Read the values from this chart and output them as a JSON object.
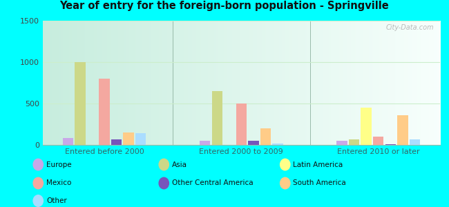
{
  "title": "Year of entry for the foreign-born population - Springville",
  "groups": [
    "Entered before 2000",
    "Entered 2000 to 2009",
    "Entered 2010 or later"
  ],
  "categories": [
    "Europe",
    "Asia",
    "Latin America",
    "Mexico",
    "Other Central America",
    "South America",
    "Other"
  ],
  "colors": [
    "#c8a8e8",
    "#ccd888",
    "#ffff88",
    "#f4a8a0",
    "#7755bb",
    "#ffcc88",
    "#aaddff"
  ],
  "values": [
    [
      80,
      1000,
      0,
      800,
      70,
      150,
      140
    ],
    [
      50,
      650,
      0,
      500,
      50,
      200,
      15
    ],
    [
      50,
      70,
      450,
      100,
      10,
      360,
      70
    ]
  ],
  "ylim": [
    0,
    1500
  ],
  "yticks": [
    0,
    500,
    1000,
    1500
  ],
  "outer_bg": "#00ffff",
  "plot_bg_left": "#c8eedd",
  "plot_bg_right": "#eeffee",
  "grid_color": "#cceecc",
  "watermark": "City-Data.com"
}
